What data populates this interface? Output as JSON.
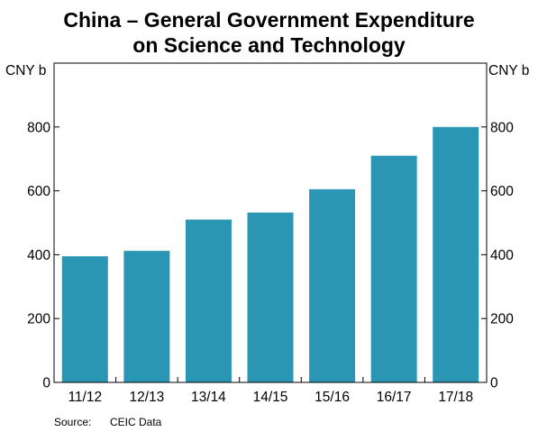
{
  "title_line1": "China – General Government Expenditure",
  "title_line2": "on Science and Technology",
  "unit_left": "CNY b",
  "unit_right": "CNY b",
  "source_label": "Source:",
  "source_value": "CEIC Data",
  "colors": {
    "bar": "#2a96b4",
    "frame": "#000000"
  },
  "chart_data": {
    "type": "bar",
    "categories": [
      "11/12",
      "12/13",
      "13/14",
      "14/15",
      "15/16",
      "16/17",
      "17/18"
    ],
    "values": [
      395,
      412,
      510,
      532,
      605,
      710,
      800
    ],
    "ylim": [
      0,
      1000
    ],
    "yticks": [
      0,
      200,
      400,
      600,
      800
    ],
    "ylabel": "CNY b",
    "grid": false,
    "legend": "none"
  }
}
